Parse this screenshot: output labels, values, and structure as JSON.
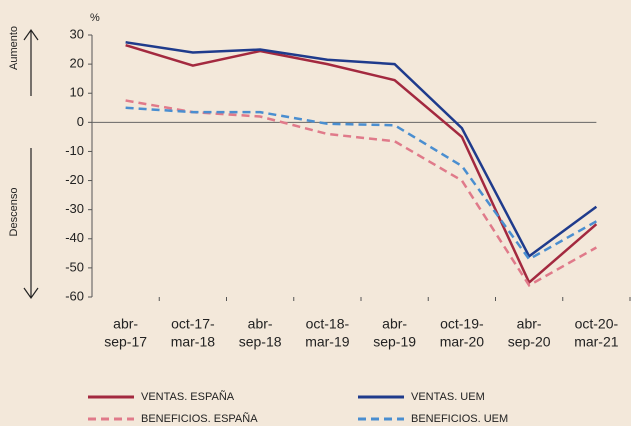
{
  "chart_data": {
    "type": "line",
    "unit": "%",
    "up_label": "Aumento",
    "down_label": "Descenso",
    "categories": [
      [
        "abr-",
        "sep-17"
      ],
      [
        "oct-17-",
        "mar-18"
      ],
      [
        "abr-",
        "sep-18"
      ],
      [
        "oct-18-",
        "mar-19"
      ],
      [
        "abr-",
        "sep-19"
      ],
      [
        "oct-19-",
        "mar-20"
      ],
      [
        "abr-",
        "sep-20"
      ],
      [
        "oct-20-",
        "mar-21"
      ]
    ],
    "series": [
      {
        "name": "VENTAS. ESPAÑA",
        "color": "#a3293f",
        "dashed": false,
        "values": [
          26.5,
          19.5,
          24.5,
          20,
          14.5,
          -5,
          -55,
          -35
        ]
      },
      {
        "name": "VENTAS. UEM",
        "color": "#1f3b8c",
        "dashed": false,
        "values": [
          27.5,
          24,
          25,
          21.5,
          20,
          -2,
          -46,
          -29
        ]
      },
      {
        "name": "BENEFICIOS. ESPAÑA",
        "color": "#e07a8a",
        "dashed": true,
        "values": [
          7.5,
          3.5,
          2,
          -4,
          -6.5,
          -20,
          -56,
          -43
        ]
      },
      {
        "name": "BENEFICIOS. UEM",
        "color": "#4a8ed0",
        "dashed": true,
        "values": [
          5,
          3.5,
          3.5,
          -0.5,
          -1,
          -15,
          -47,
          -34
        ]
      }
    ],
    "ylim": [
      -60,
      30
    ],
    "yticks": [
      30,
      20,
      10,
      0,
      -10,
      -20,
      -30,
      -40,
      -50,
      -60
    ],
    "grid": false
  }
}
